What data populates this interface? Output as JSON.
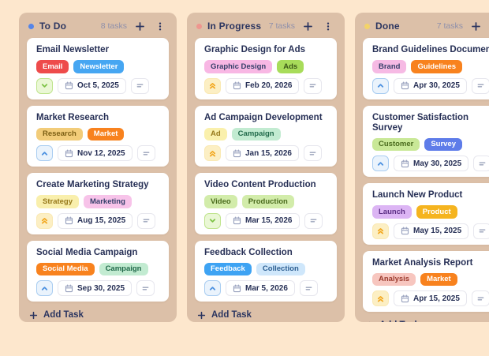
{
  "board": {
    "columns": [
      {
        "name": "To Do",
        "count_label": "8 tasks",
        "dot_color": "#5585e8",
        "add_task_label": "Add Task",
        "tasks": [
          {
            "title": "Email Newsletter",
            "priority": "low",
            "due_date": "Oct 5, 2025",
            "tags": [
              {
                "label": "Email",
                "bg": "#ee4b4b",
                "fg": "#ffffff"
              },
              {
                "label": "Newsletter",
                "bg": "#46a6f2",
                "fg": "#ffffff"
              }
            ]
          },
          {
            "title": "Market Research",
            "priority": "medium",
            "due_date": "Nov 12, 2025",
            "tags": [
              {
                "label": "Research",
                "bg": "#f2cc79",
                "fg": "#7c5f14"
              },
              {
                "label": "Market",
                "bg": "#f8821e",
                "fg": "#ffffff"
              }
            ]
          },
          {
            "title": "Create Marketing Strategy",
            "priority": "high",
            "due_date": "Aug 15, 2025",
            "tags": [
              {
                "label": "Strategy",
                "bg": "#f9efac",
                "fg": "#97791b"
              },
              {
                "label": "Marketing",
                "bg": "#f7c3e9",
                "fg": "#34406b"
              }
            ]
          },
          {
            "title": "Social Media Campaign",
            "priority": "medium",
            "due_date": "Sep 30, 2025",
            "tags": [
              {
                "label": "Social Media",
                "bg": "#f8821e",
                "fg": "#ffffff"
              },
              {
                "label": "Campaign",
                "bg": "#c2ebd1",
                "fg": "#20694a"
              }
            ]
          }
        ]
      },
      {
        "name": "In Progress",
        "count_label": "7 tasks",
        "dot_color": "#ee968f",
        "add_task_label": "Add Task",
        "tasks": [
          {
            "title": "Graphic Design for Ads",
            "priority": "high",
            "due_date": "Feb 20, 2026",
            "tags": [
              {
                "label": "Graphic Design",
                "bg": "#f8b7e4",
                "fg": "#333e68"
              },
              {
                "label": "Ads",
                "bg": "#a8dc5a",
                "fg": "#3c5718"
              }
            ]
          },
          {
            "title": "Ad Campaign Development",
            "priority": "high",
            "due_date": "Jan 15, 2026",
            "tags": [
              {
                "label": "Ad",
                "bg": "#faf0ac",
                "fg": "#97791b"
              },
              {
                "label": "Campaign",
                "bg": "#c2ebd1",
                "fg": "#20694a"
              }
            ]
          },
          {
            "title": "Video Content Production",
            "priority": "low",
            "due_date": "Mar 15, 2026",
            "tags": [
              {
                "label": "Video",
                "bg": "#d2ecaa",
                "fg": "#4a6b1d"
              },
              {
                "label": "Production",
                "bg": "#d2ecaa",
                "fg": "#4a6b1d"
              }
            ]
          },
          {
            "title": "Feedback Collection",
            "priority": "medium",
            "due_date": "Mar 5, 2026",
            "tags": [
              {
                "label": "Feedback",
                "bg": "#3ea3f3",
                "fg": "#ffffff"
              },
              {
                "label": "Collection",
                "bg": "#cfe7fb",
                "fg": "#2d5f92"
              }
            ]
          }
        ]
      },
      {
        "name": "Done",
        "count_label": "7 tasks",
        "dot_color": "#f3d368",
        "add_task_label": "Add Task",
        "tasks": [
          {
            "title": "Brand Guidelines Document",
            "priority": "medium",
            "due_date": "Apr 30, 2025",
            "tags": [
              {
                "label": "Brand",
                "bg": "#f6bae4",
                "fg": "#343e68"
              },
              {
                "label": "Guidelines",
                "bg": "#f8821e",
                "fg": "#ffffff"
              }
            ]
          },
          {
            "title": "Customer Satisfaction Survey",
            "priority": "medium",
            "due_date": "May 30, 2025",
            "tags": [
              {
                "label": "Customer",
                "bg": "#c9e897",
                "fg": "#4a6b1d"
              },
              {
                "label": "Survey",
                "bg": "#5e7ce9",
                "fg": "#ffffff"
              }
            ]
          },
          {
            "title": "Launch New Product",
            "priority": "high",
            "due_date": "May 15, 2025",
            "tags": [
              {
                "label": "Launch",
                "bg": "#dcb5f4",
                "fg": "#5b2d84"
              },
              {
                "label": "Product",
                "bg": "#f5b41f",
                "fg": "#ffffff"
              }
            ]
          },
          {
            "title": "Market Analysis Report",
            "priority": "high",
            "due_date": "Apr 15, 2025",
            "tags": [
              {
                "label": "Analysis",
                "bg": "#f7c6bf",
                "fg": "#9c3b2e"
              },
              {
                "label": "Market",
                "bg": "#f8821e",
                "fg": "#ffffff"
              }
            ]
          }
        ]
      }
    ]
  },
  "icons": {
    "add": "plus",
    "column_menu": "kebab-vertical-dots",
    "due_date": "calendar",
    "notes": "text-lines",
    "priority_low": "chevron-down",
    "priority_medium": "chevron-up",
    "priority_high": "double-chevron-up"
  }
}
